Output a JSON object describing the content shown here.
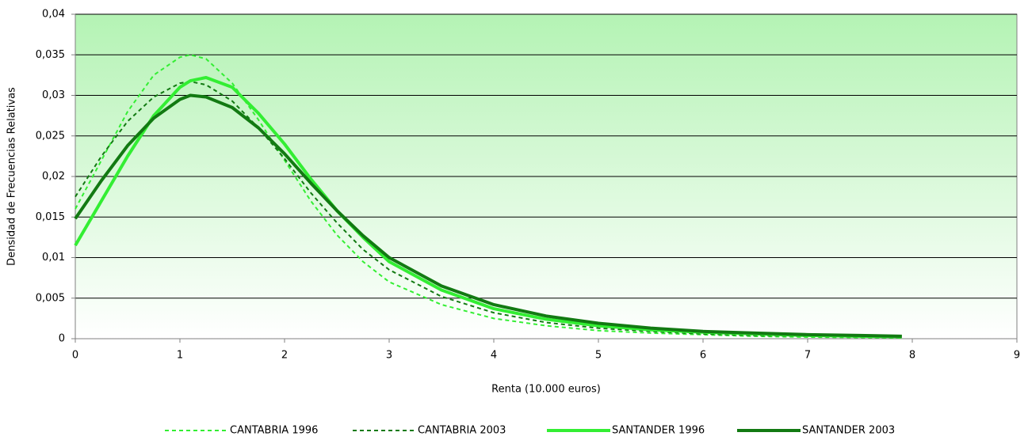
{
  "chart_data": {
    "type": "line",
    "xlabel": "Renta (10.000 euros)",
    "ylabel": "Densidad de Frecuencias Relativas",
    "x": [
      0,
      0.25,
      0.5,
      0.75,
      1,
      1.1,
      1.25,
      1.5,
      1.75,
      2,
      2.25,
      2.5,
      2.75,
      3,
      3.5,
      4,
      4.5,
      5,
      5.5,
      6,
      6.5,
      7,
      7.5,
      7.9
    ],
    "series": [
      {
        "name": "CANTABRIA 1996",
        "color": "#33ee33",
        "dashed": true,
        "values": [
          0.016,
          0.022,
          0.028,
          0.0325,
          0.0347,
          0.035,
          0.0345,
          0.0315,
          0.027,
          0.022,
          0.017,
          0.0128,
          0.0095,
          0.007,
          0.0042,
          0.0025,
          0.0016,
          0.001,
          0.0007,
          0.0005,
          0.0003,
          0.0002,
          0.00015,
          0.0001
        ]
      },
      {
        "name": "CANTABRIA 2003",
        "color": "#127a12",
        "dashed": true,
        "values": [
          0.0175,
          0.0225,
          0.0268,
          0.0298,
          0.0315,
          0.0317,
          0.0313,
          0.0293,
          0.026,
          0.0222,
          0.018,
          0.0143,
          0.011,
          0.0085,
          0.0052,
          0.0032,
          0.002,
          0.0013,
          0.0009,
          0.0006,
          0.0004,
          0.0003,
          0.0002,
          0.00015
        ]
      },
      {
        "name": "SANTANDER 1996",
        "color": "#33ee33",
        "dashed": false,
        "values": [
          0.0115,
          0.017,
          0.0225,
          0.0275,
          0.031,
          0.0318,
          0.0322,
          0.031,
          0.0278,
          0.024,
          0.0197,
          0.0158,
          0.0125,
          0.0095,
          0.006,
          0.0037,
          0.0024,
          0.0016,
          0.0011,
          0.0008,
          0.0006,
          0.0004,
          0.0003,
          0.00025
        ]
      },
      {
        "name": "SANTANDER 2003",
        "color": "#127a12",
        "dashed": false,
        "values": [
          0.0148,
          0.0195,
          0.0238,
          0.0272,
          0.0295,
          0.03,
          0.0298,
          0.0285,
          0.026,
          0.0228,
          0.0192,
          0.0158,
          0.0127,
          0.01,
          0.0065,
          0.0042,
          0.0028,
          0.0019,
          0.0013,
          0.0009,
          0.0007,
          0.0005,
          0.0004,
          0.0003
        ]
      }
    ],
    "xlim": [
      0,
      9
    ],
    "xticks": [
      0,
      1,
      2,
      3,
      4,
      5,
      6,
      7,
      8,
      9
    ],
    "ylim": [
      0,
      0.04
    ],
    "yticks": [
      0,
      {
        "value": 0.005,
        "label": "0,005"
      },
      {
        "value": 0.01,
        "label": "0,01"
      },
      {
        "value": 0.015,
        "label": "0,015"
      },
      {
        "value": 0.02,
        "label": "0,02"
      },
      {
        "value": 0.025,
        "label": "0,025"
      },
      {
        "value": 0.03,
        "label": "0,03"
      },
      {
        "value": 0.035,
        "label": "0,035"
      },
      {
        "value": 0.04,
        "label": "0,04"
      }
    ],
    "grid": true,
    "legend": "bottom"
  }
}
